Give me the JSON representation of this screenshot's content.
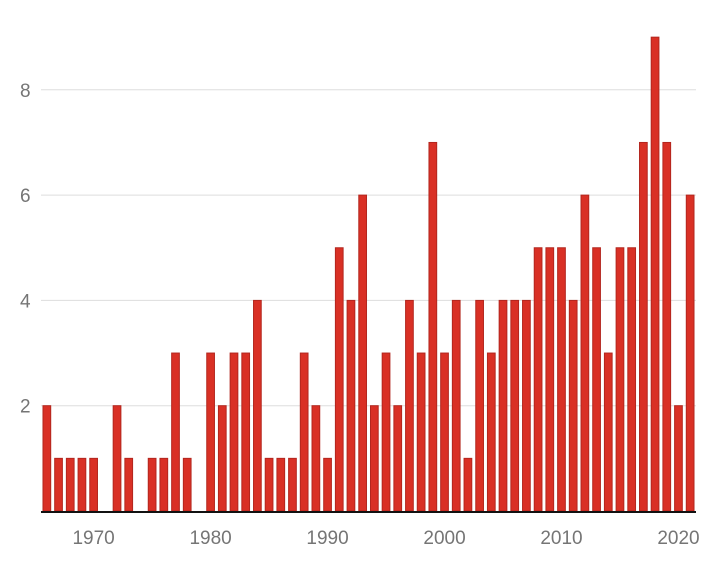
{
  "chart_data": {
    "type": "bar",
    "title": "",
    "xlabel": "",
    "ylabel": "",
    "x": [
      1966,
      1967,
      1968,
      1969,
      1970,
      1971,
      1972,
      1973,
      1974,
      1975,
      1976,
      1977,
      1978,
      1979,
      1980,
      1981,
      1982,
      1983,
      1984,
      1985,
      1986,
      1987,
      1988,
      1989,
      1990,
      1991,
      1992,
      1993,
      1994,
      1995,
      1996,
      1997,
      1998,
      1999,
      2000,
      2001,
      2002,
      2003,
      2004,
      2005,
      2006,
      2007,
      2008,
      2009,
      2010,
      2011,
      2012,
      2013,
      2014,
      2015,
      2016,
      2017,
      2018,
      2019,
      2020,
      2021
    ],
    "values": [
      2,
      1,
      1,
      1,
      1,
      0,
      2,
      1,
      0,
      1,
      1,
      3,
      1,
      0,
      3,
      2,
      3,
      3,
      4,
      1,
      1,
      1,
      3,
      2,
      1,
      5,
      4,
      6,
      2,
      3,
      2,
      4,
      3,
      7,
      3,
      4,
      1,
      4,
      3,
      4,
      4,
      4,
      5,
      5,
      5,
      4,
      6,
      5,
      3,
      5,
      5,
      7,
      9,
      7,
      2,
      6
    ],
    "xlim": [
      1965.5,
      2021.5
    ],
    "ylim": [
      0,
      9.25
    ],
    "x_ticks": [
      1970,
      1980,
      1990,
      2000,
      2010,
      2020
    ],
    "x_tick_labels": [
      "1970",
      "1980",
      "1990",
      "2000",
      "2010",
      "2020"
    ],
    "y_ticks": [
      2,
      4,
      6,
      8
    ],
    "y_tick_labels": [
      "2",
      "4",
      "6",
      "8"
    ],
    "grid": true,
    "legend": "none",
    "colors": {
      "bar": "#d93025",
      "grid": "#dddddd",
      "axis": "#111111",
      "tick_text": "#757575"
    }
  }
}
